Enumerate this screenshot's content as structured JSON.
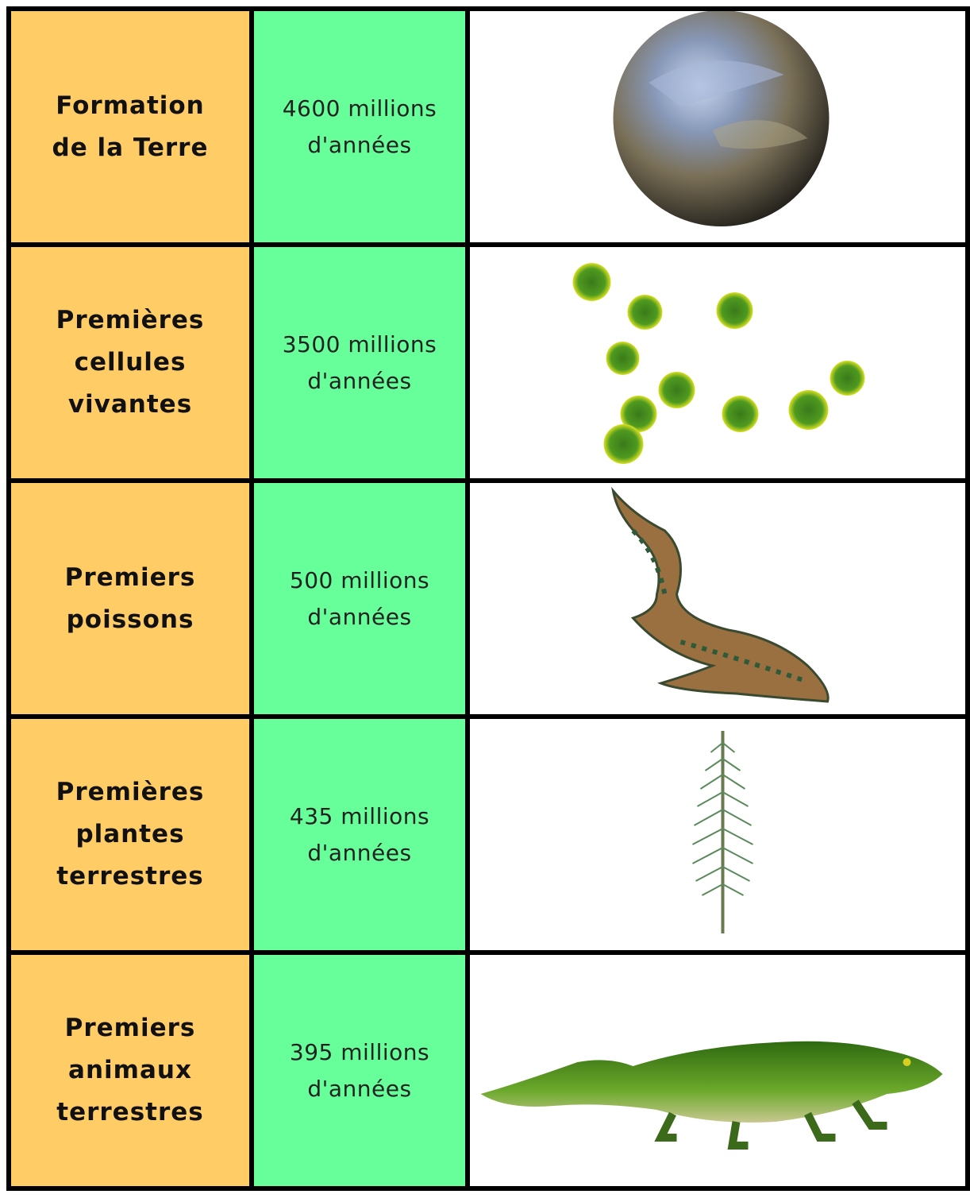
{
  "rows": [
    {
      "event": [
        "Formation",
        "de la Terre"
      ],
      "age": [
        "4600 millions",
        "d'années"
      ]
    },
    {
      "event": [
        "Premières",
        "cellules",
        "vivantes"
      ],
      "age": [
        "3500 millions",
        "d'années"
      ]
    },
    {
      "event": [
        "Premiers",
        "poissons"
      ],
      "age": [
        "500 millions",
        "d'années"
      ]
    },
    {
      "event": [
        "Premières",
        "plantes",
        "terrestres"
      ],
      "age": [
        "435 millions",
        "d'années"
      ]
    },
    {
      "event": [
        "Premiers",
        "animaux",
        "terrestres"
      ],
      "age": [
        "395 millions",
        "d'années"
      ]
    }
  ]
}
